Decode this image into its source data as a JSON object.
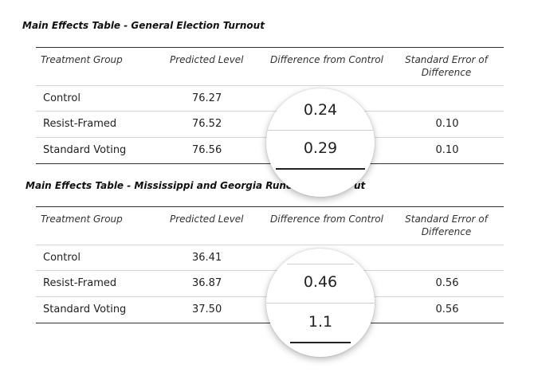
{
  "headers": {
    "treatment_group": "Treatment Group",
    "predicted_level": "Predicted Level",
    "difference": "Difference from Control",
    "std_error": "Standard Error of Difference"
  },
  "table1": {
    "title": "Main Effects Table - General Election Turnout",
    "rows": [
      {
        "group": "Control",
        "predicted": "76.27",
        "difference": "",
        "se": ""
      },
      {
        "group": "Resist-Framed",
        "predicted": "76.52",
        "difference": "0.24",
        "se": "0.10"
      },
      {
        "group": "Standard Voting",
        "predicted": "76.56",
        "difference": "0.29",
        "se": "0.10"
      }
    ]
  },
  "table2": {
    "title": "Main Effects Table - Mississippi and Georgia Runoff E",
    "title_tail": "ut",
    "rows": [
      {
        "group": "Control",
        "predicted": "36.41",
        "difference": "",
        "se": ""
      },
      {
        "group": "Resist-Framed",
        "predicted": "36.87",
        "difference": "0.46",
        "se": "0.56"
      },
      {
        "group": "Standard Voting",
        "predicted": "37.50",
        "difference": "1.1",
        "se": "0.56"
      }
    ]
  }
}
